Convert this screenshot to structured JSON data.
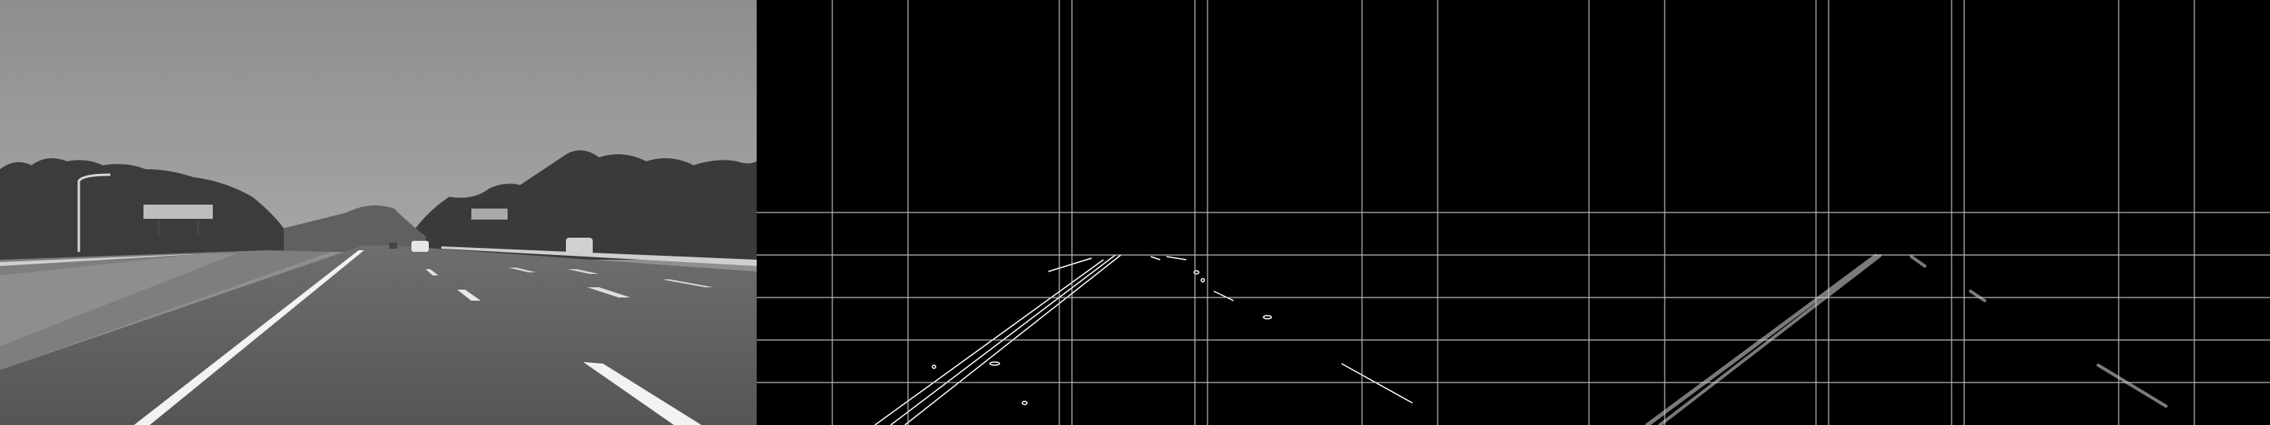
{
  "image": {
    "panels": [
      {
        "name": "grayscale-road-photo"
      },
      {
        "name": "canny-edge-map"
      },
      {
        "name": "hough-lane-lines"
      }
    ],
    "colors": {
      "sky": "#9c9c9c",
      "road": "#5d5d5d",
      "trees": "#3a3a3a",
      "lane-marking": "#f2f2f2",
      "edge": "#ffffff",
      "hough-line": "#7a7a7a",
      "grid": "#cfcfcf",
      "background": "#000000"
    }
  }
}
